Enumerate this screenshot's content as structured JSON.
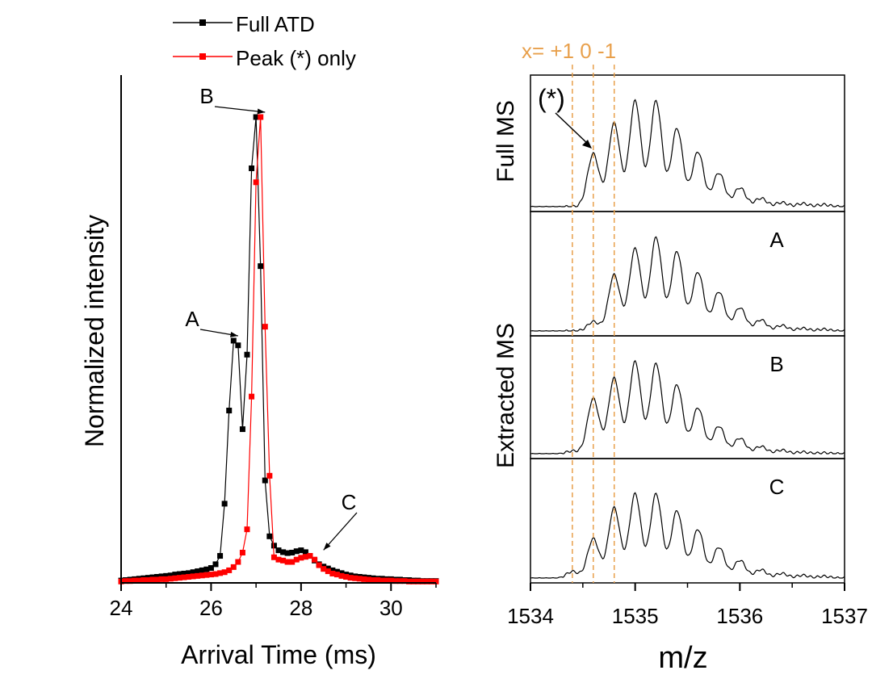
{
  "chart_data": [
    {
      "type": "line",
      "xlabel": "Arrival Time (ms)",
      "ylabel": "Normalized intensity",
      "xlim": [
        24,
        31
      ],
      "ylim": [
        0,
        1.0
      ],
      "x_ticks": [
        "24",
        "26",
        "28",
        "30"
      ],
      "legend": {
        "placement": "top-left, outside plot"
      },
      "series": [
        {
          "name": "Full ATD",
          "color": "#000000",
          "marker": "square",
          "x": [
            24.0,
            24.1,
            24.2,
            24.3,
            24.4,
            24.5,
            24.6,
            24.7,
            24.8,
            24.9,
            25.0,
            25.1,
            25.2,
            25.3,
            25.4,
            25.5,
            25.6,
            25.7,
            25.8,
            25.9,
            26.0,
            26.1,
            26.2,
            26.3,
            26.4,
            26.5,
            26.6,
            26.7,
            26.8,
            26.9,
            27.0,
            27.1,
            27.2,
            27.3,
            27.4,
            27.5,
            27.6,
            27.7,
            27.8,
            27.9,
            28.0,
            28.1,
            28.2,
            28.3,
            28.4,
            28.5,
            28.6,
            28.7,
            28.8,
            28.9,
            29.0,
            29.1,
            29.2,
            29.3,
            29.4,
            29.5,
            29.6,
            29.7,
            29.8,
            29.9,
            30.0,
            30.1,
            30.2,
            30.3,
            30.4,
            30.5,
            30.6,
            30.7,
            30.8,
            30.9,
            31.0
          ],
          "values": [
            0.005,
            0.006,
            0.007,
            0.008,
            0.009,
            0.01,
            0.011,
            0.012,
            0.013,
            0.014,
            0.015,
            0.016,
            0.018,
            0.019,
            0.02,
            0.021,
            0.023,
            0.025,
            0.027,
            0.029,
            0.032,
            0.04,
            0.058,
            0.17,
            0.37,
            0.52,
            0.51,
            0.33,
            0.49,
            0.89,
            1.0,
            0.68,
            0.22,
            0.1,
            0.08,
            0.07,
            0.066,
            0.064,
            0.065,
            0.068,
            0.07,
            0.066,
            0.058,
            0.048,
            0.04,
            0.035,
            0.031,
            0.027,
            0.024,
            0.021,
            0.018,
            0.016,
            0.014,
            0.013,
            0.012,
            0.011,
            0.01,
            0.009,
            0.009,
            0.008,
            0.008,
            0.007,
            0.007,
            0.006,
            0.006,
            0.005,
            0.005,
            0.004,
            0.004,
            0.004,
            0.004
          ]
        },
        {
          "name": "Peak (*) only",
          "color": "#ff0000",
          "marker": "square",
          "x": [
            24.0,
            24.1,
            24.2,
            24.3,
            24.4,
            24.5,
            24.6,
            24.7,
            24.8,
            24.9,
            25.0,
            25.1,
            25.2,
            25.3,
            25.4,
            25.5,
            25.6,
            25.7,
            25.8,
            25.9,
            26.0,
            26.1,
            26.2,
            26.3,
            26.4,
            26.5,
            26.6,
            26.7,
            26.8,
            26.9,
            27.0,
            27.1,
            27.2,
            27.3,
            27.4,
            27.5,
            27.6,
            27.7,
            27.8,
            27.9,
            28.0,
            28.1,
            28.2,
            28.3,
            28.4,
            28.5,
            28.6,
            28.7,
            28.8,
            28.9,
            29.0,
            29.1,
            29.2,
            29.3,
            29.4,
            29.5,
            29.6,
            29.7,
            29.8,
            29.9,
            30.0,
            30.1,
            30.2,
            30.3,
            30.4,
            30.5,
            30.6,
            30.7,
            30.8,
            30.9,
            31.0
          ],
          "values": [
            0.003,
            0.004,
            0.004,
            0.005,
            0.005,
            0.006,
            0.006,
            0.007,
            0.007,
            0.008,
            0.008,
            0.009,
            0.01,
            0.011,
            0.012,
            0.013,
            0.014,
            0.015,
            0.016,
            0.017,
            0.018,
            0.019,
            0.021,
            0.023,
            0.027,
            0.034,
            0.045,
            0.065,
            0.115,
            0.4,
            0.86,
            1.0,
            0.55,
            0.23,
            0.055,
            0.05,
            0.048,
            0.045,
            0.045,
            0.05,
            0.054,
            0.056,
            0.058,
            0.05,
            0.038,
            0.03,
            0.025,
            0.02,
            0.018,
            0.015,
            0.013,
            0.011,
            0.01,
            0.009,
            0.008,
            0.007,
            0.006,
            0.006,
            0.005,
            0.005,
            0.005,
            0.004,
            0.004,
            0.004,
            0.003,
            0.003,
            0.003,
            0.003,
            0.003,
            0.003,
            0.003
          ]
        }
      ],
      "annotations": [
        {
          "text": "A",
          "x": 26.6,
          "y": 0.52
        },
        {
          "text": "B",
          "x": 27.2,
          "y": 1.0
        },
        {
          "text": "C",
          "x": 28.5,
          "y": 0.06
        }
      ]
    },
    {
      "type": "line",
      "xlabel": "m/z",
      "xlim": [
        1534,
        1537
      ],
      "x_ticks": [
        "1534",
        "1535",
        "1536",
        "1537"
      ],
      "top_label": "x= +1 0 -1",
      "top_label_color": "#e8a04c",
      "dashed_lines": [
        {
          "text": "+1",
          "x": 1534.4
        },
        {
          "text": "0",
          "x": 1534.6
        },
        {
          "text": "-1",
          "x": 1534.8
        }
      ],
      "panel_group_labels": {
        "full": "Full MS",
        "extracted": "Extracted MS"
      },
      "star_label": "(*)",
      "peak_centers": [
        1534.4,
        1534.6,
        1534.8,
        1535.0,
        1535.2,
        1535.4,
        1535.6,
        1535.8,
        1536.0,
        1536.2,
        1536.4,
        1536.6,
        1536.8
      ],
      "series": [
        {
          "panel": "",
          "values": [
            0.0,
            0.5,
            0.79,
            1.0,
            1.0,
            0.74,
            0.52,
            0.32,
            0.18,
            0.08,
            0.04,
            0.03,
            0.02
          ]
        },
        {
          "panel": "A",
          "values": [
            0.0,
            0.1,
            0.6,
            0.88,
            1.0,
            0.85,
            0.63,
            0.42,
            0.25,
            0.12,
            0.06,
            0.03,
            0.02
          ]
        },
        {
          "panel": "B",
          "values": [
            0.03,
            0.6,
            0.82,
            1.0,
            0.98,
            0.75,
            0.5,
            0.3,
            0.17,
            0.08,
            0.04,
            0.02,
            0.01
          ]
        },
        {
          "panel": "C",
          "values": [
            0.07,
            0.42,
            0.75,
            0.9,
            0.9,
            0.72,
            0.52,
            0.33,
            0.19,
            0.09,
            0.05,
            0.03,
            0.02
          ]
        }
      ]
    }
  ]
}
